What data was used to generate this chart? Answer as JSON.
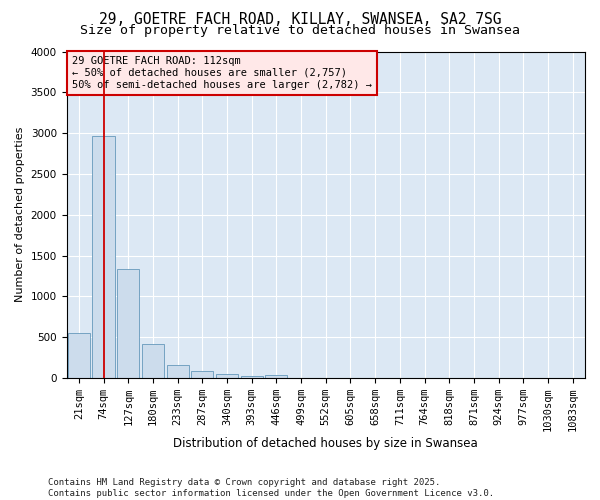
{
  "title_line1": "29, GOETRE FACH ROAD, KILLAY, SWANSEA, SA2 7SG",
  "title_line2": "Size of property relative to detached houses in Swansea",
  "xlabel": "Distribution of detached houses by size in Swansea",
  "ylabel": "Number of detached properties",
  "footnote_line1": "Contains HM Land Registry data © Crown copyright and database right 2025.",
  "footnote_line2": "Contains public sector information licensed under the Open Government Licence v3.0.",
  "categories": [
    "21sqm",
    "74sqm",
    "127sqm",
    "180sqm",
    "233sqm",
    "287sqm",
    "340sqm",
    "393sqm",
    "446sqm",
    "499sqm",
    "552sqm",
    "605sqm",
    "658sqm",
    "711sqm",
    "764sqm",
    "818sqm",
    "871sqm",
    "924sqm",
    "977sqm",
    "1030sqm",
    "1083sqm"
  ],
  "values": [
    550,
    2970,
    1340,
    420,
    155,
    90,
    50,
    30,
    35,
    0,
    0,
    0,
    0,
    0,
    0,
    0,
    0,
    0,
    0,
    0,
    0
  ],
  "bar_color": "#ccdcec",
  "bar_edge_color": "#6699bb",
  "ylim": [
    0,
    4000
  ],
  "yticks": [
    0,
    500,
    1000,
    1500,
    2000,
    2500,
    3000,
    3500,
    4000
  ],
  "annotation_line1": "29 GOETRE FACH ROAD: 112sqm",
  "annotation_line2": "← 50% of detached houses are smaller (2,757)",
  "annotation_line3": "50% of semi-detached houses are larger (2,782) →",
  "vline_x_index": 1,
  "annotation_box_facecolor": "#ffe8e8",
  "annotation_box_edgecolor": "#cc0000",
  "plot_bg_color": "#dce8f4",
  "grid_color": "#ffffff",
  "fig_bg_color": "#ffffff",
  "title1_fontsize": 10.5,
  "title2_fontsize": 9.5,
  "axis_label_fontsize": 8.5,
  "tick_fontsize": 7.5,
  "annotation_fontsize": 7.5,
  "footnote_fontsize": 6.5,
  "ylabel_fontsize": 8
}
